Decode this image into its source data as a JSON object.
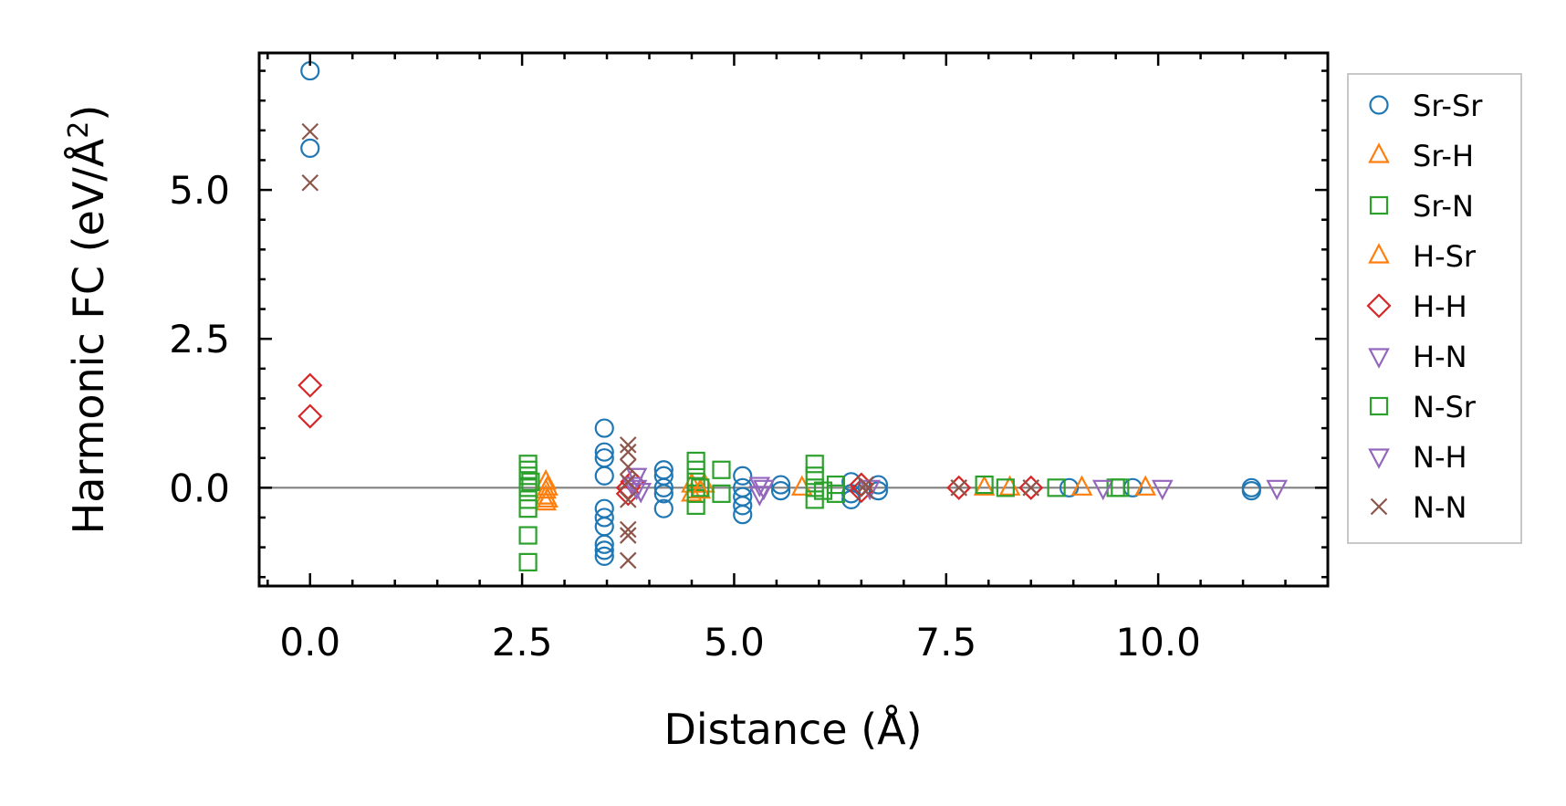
{
  "chart_data": {
    "type": "scatter",
    "title": "",
    "xlabel": "Distance (Å)",
    "ylabel_main": "Harmonic FC (eV/Å",
    "ylabel_sup": "2",
    "ylabel_close": ")",
    "xlim": [
      -0.6,
      12.0
    ],
    "ylim": [
      -1.65,
      7.3
    ],
    "xticks": [
      0.0,
      2.5,
      5.0,
      7.5,
      10.0
    ],
    "xtick_labels": [
      "0.0",
      "2.5",
      "5.0",
      "7.5",
      "10.0"
    ],
    "yticks": [
      0.0,
      2.5,
      5.0
    ],
    "ytick_labels": [
      "0.0",
      "2.5",
      "5.0"
    ],
    "reference_line_y": 0.0,
    "legend_position": "right-outside",
    "series": [
      {
        "name": "Sr-Sr",
        "marker": "circle",
        "color": "#1f77b4",
        "points": [
          [
            0,
            7.0
          ],
          [
            0,
            5.7
          ],
          [
            3.47,
            1.0
          ],
          [
            3.47,
            0.6
          ],
          [
            3.47,
            0.5
          ],
          [
            3.47,
            0.2
          ],
          [
            3.47,
            -0.35
          ],
          [
            3.47,
            -0.5
          ],
          [
            3.47,
            -0.65
          ],
          [
            3.47,
            -0.95
          ],
          [
            3.47,
            -1.05
          ],
          [
            3.47,
            -1.15
          ],
          [
            4.17,
            0.3
          ],
          [
            4.17,
            0.2
          ],
          [
            4.17,
            0.0
          ],
          [
            4.17,
            -0.1
          ],
          [
            4.17,
            -0.35
          ],
          [
            5.1,
            0.2
          ],
          [
            5.1,
            0.0
          ],
          [
            5.1,
            -0.15
          ],
          [
            5.1,
            -0.3
          ],
          [
            5.1,
            -0.45
          ],
          [
            5.55,
            0.05
          ],
          [
            5.55,
            -0.05
          ],
          [
            6.38,
            0.1
          ],
          [
            6.38,
            -0.1
          ],
          [
            6.38,
            -0.2
          ],
          [
            6.7,
            0.05
          ],
          [
            6.7,
            -0.05
          ],
          [
            8.95,
            0.0
          ],
          [
            9.7,
            0.0
          ],
          [
            11.1,
            0.0
          ],
          [
            11.1,
            -0.05
          ]
        ]
      },
      {
        "name": "Sr-H",
        "marker": "triangle-up",
        "color": "#ff7f0e",
        "points": [
          [
            2.78,
            0.1
          ],
          [
            2.78,
            -0.05
          ],
          [
            2.78,
            -0.15
          ],
          [
            2.78,
            -0.25
          ],
          [
            4.5,
            0.05
          ],
          [
            4.5,
            -0.1
          ],
          [
            4.65,
            0.05
          ],
          [
            5.8,
            0.0
          ],
          [
            7.95,
            0.0
          ],
          [
            8.25,
            0.0
          ],
          [
            9.1,
            0.0
          ]
        ]
      },
      {
        "name": "Sr-N",
        "marker": "square",
        "color": "#2ca02c",
        "points": [
          [
            2.57,
            0.4
          ],
          [
            2.57,
            0.3
          ],
          [
            2.57,
            0.2
          ],
          [
            2.57,
            0.0
          ],
          [
            2.57,
            -0.2
          ],
          [
            2.57,
            -0.35
          ],
          [
            2.57,
            -0.8
          ],
          [
            2.57,
            -1.25
          ],
          [
            4.55,
            0.45
          ],
          [
            4.55,
            0.3
          ],
          [
            4.55,
            0.1
          ],
          [
            4.55,
            -0.1
          ],
          [
            4.55,
            -0.3
          ],
          [
            4.85,
            0.3
          ],
          [
            4.85,
            -0.1
          ],
          [
            5.95,
            0.4
          ],
          [
            5.95,
            0.2
          ],
          [
            5.95,
            0.0
          ],
          [
            5.95,
            -0.2
          ],
          [
            6.2,
            0.05
          ],
          [
            6.2,
            -0.1
          ],
          [
            7.95,
            0.05
          ],
          [
            8.2,
            0.0
          ],
          [
            8.8,
            0.0
          ],
          [
            9.5,
            0.0
          ]
        ]
      },
      {
        "name": "H-Sr",
        "marker": "triangle-up",
        "color": "#ff7f0e",
        "points": [
          [
            2.8,
            0.0
          ],
          [
            2.8,
            -0.2
          ],
          [
            4.6,
            -0.05
          ],
          [
            9.85,
            0.0
          ]
        ]
      },
      {
        "name": "H-H",
        "marker": "diamond",
        "color": "#d62728",
        "points": [
          [
            0,
            1.72
          ],
          [
            0,
            1.2
          ],
          [
            3.75,
            0.0
          ],
          [
            3.75,
            -0.1
          ],
          [
            3.8,
            0.1
          ],
          [
            6.5,
            0.05
          ],
          [
            6.5,
            -0.05
          ],
          [
            7.65,
            0.0
          ],
          [
            8.5,
            0.0
          ]
        ]
      },
      {
        "name": "H-N",
        "marker": "triangle-down",
        "color": "#9467bd",
        "points": [
          [
            3.85,
            0.2
          ],
          [
            3.85,
            0.0
          ],
          [
            5.3,
            0.05
          ],
          [
            5.3,
            -0.1
          ],
          [
            6.6,
            0.0
          ],
          [
            9.35,
            0.0
          ],
          [
            10.05,
            0.0
          ],
          [
            11.4,
            0.0
          ]
        ]
      },
      {
        "name": "N-Sr",
        "marker": "square",
        "color": "#2ca02c",
        "points": [
          [
            2.6,
            0.1
          ],
          [
            4.6,
            0.0
          ],
          [
            6.05,
            -0.05
          ],
          [
            9.55,
            0.0
          ]
        ]
      },
      {
        "name": "N-H",
        "marker": "triangle-down",
        "color": "#9467bd",
        "points": [
          [
            3.8,
            0.05
          ],
          [
            3.9,
            -0.05
          ],
          [
            5.35,
            0.0
          ]
        ]
      },
      {
        "name": "N-N",
        "marker": "x",
        "color": "#8c564b",
        "points": [
          [
            0,
            5.98
          ],
          [
            0,
            5.12
          ],
          [
            3.75,
            0.72
          ],
          [
            3.75,
            0.6
          ],
          [
            3.75,
            0.35
          ],
          [
            3.75,
            0.1
          ],
          [
            3.75,
            -0.2
          ],
          [
            3.75,
            -0.7
          ],
          [
            3.75,
            -0.8
          ],
          [
            3.75,
            -1.22
          ],
          [
            6.55,
            0.05
          ],
          [
            6.55,
            -0.05
          ],
          [
            7.65,
            0.0
          ],
          [
            8.5,
            0.0
          ]
        ]
      }
    ]
  }
}
